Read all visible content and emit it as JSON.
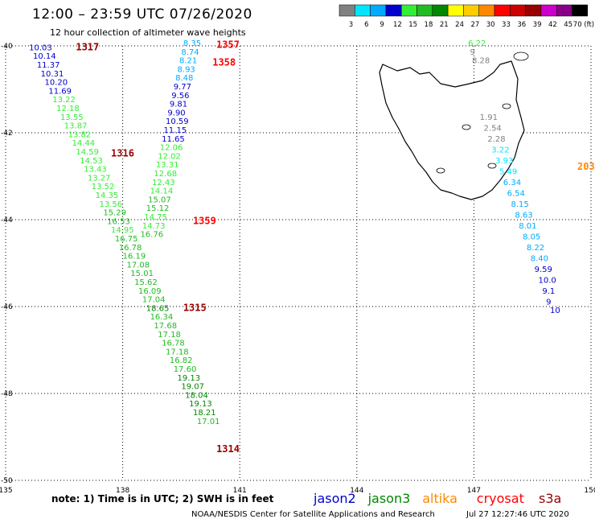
{
  "title": "12:00 – 23:59 UTC 07/26/2020",
  "subtitle": "12 hour collection of altimeter wave heights",
  "note": "note: 1) Time is in UTC; 2) SWH is in feet",
  "credit": "NOAA/NESDIS Center for Satellite Applications and Research",
  "timestamp": "Jul 27 12:27:46 UTC 2020",
  "colorbar": {
    "labels": [
      "3",
      "6",
      "9",
      "12",
      "15",
      "18",
      "21",
      "24",
      "27",
      "30",
      "33",
      "36",
      "39",
      "42",
      "45",
      "70 (ft)"
    ],
    "colors": [
      "#808080",
      "#00e5ff",
      "#00aaff",
      "#0000cc",
      "#33ee33",
      "#22bb22",
      "#008800",
      "#ffff00",
      "#ffcc00",
      "#ff8800",
      "#ff0000",
      "#cc0000",
      "#990000",
      "#cc00cc",
      "#880088",
      "#000000"
    ]
  },
  "missions": [
    {
      "name": "jason2",
      "color": "#0000cc"
    },
    {
      "name": "jason3",
      "color": "#008800"
    },
    {
      "name": "altika",
      "color": "#ff8800"
    },
    {
      "name": "cryosat",
      "color": "#ff0000"
    },
    {
      "name": "s3a",
      "color": "#990000"
    }
  ],
  "axes": {
    "lon_ticks": [
      "135",
      "138",
      "141",
      "144",
      "147",
      "150"
    ],
    "lat_ticks": [
      "-40",
      "-42",
      "-44",
      "-46",
      "-48",
      "-50"
    ]
  },
  "chart_data": {
    "type": "scatter",
    "xlim": [
      135,
      150
    ],
    "ylim": [
      -50,
      -40
    ],
    "grid": true,
    "pass_labels": [
      {
        "text": "1317",
        "lon": 136.8,
        "lat": -40.1,
        "color": "#990000"
      },
      {
        "text": "1357",
        "lon": 140.4,
        "lat": -40.05,
        "color": "#ff0000"
      },
      {
        "text": "1358",
        "lon": 140.3,
        "lat": -40.45,
        "color": "#ff0000"
      },
      {
        "text": "1316",
        "lon": 137.7,
        "lat": -42.55,
        "color": "#990000"
      },
      {
        "text": "1359",
        "lon": 139.8,
        "lat": -44.1,
        "color": "#ff0000"
      },
      {
        "text": "1315",
        "lon": 139.55,
        "lat": -46.1,
        "color": "#990000"
      },
      {
        "text": "1314",
        "lon": 140.4,
        "lat": -49.35,
        "color": "#990000"
      },
      {
        "text": "203",
        "lon": 149.65,
        "lat": -42.85,
        "color": "#ff8800"
      }
    ],
    "series": [
      {
        "name": "track-1317-1315-1314",
        "points": [
          {
            "lon": 135.6,
            "lat": -40.1,
            "swh": "10.03",
            "color": "#0000cc"
          },
          {
            "lon": 135.7,
            "lat": -40.3,
            "swh": "10.14",
            "color": "#0000cc"
          },
          {
            "lon": 135.8,
            "lat": -40.5,
            "swh": "11.37",
            "color": "#0000cc"
          },
          {
            "lon": 135.9,
            "lat": -40.7,
            "swh": "10.31",
            "color": "#0000cc"
          },
          {
            "lon": 136.0,
            "lat": -40.9,
            "swh": "10.20",
            "color": "#0000cc"
          },
          {
            "lon": 136.1,
            "lat": -41.1,
            "swh": "11.69",
            "color": "#0000cc"
          },
          {
            "lon": 136.2,
            "lat": -41.3,
            "swh": "13.22",
            "color": "#33ee33"
          },
          {
            "lon": 136.3,
            "lat": -41.5,
            "swh": "12.18",
            "color": "#33ee33"
          },
          {
            "lon": 136.4,
            "lat": -41.7,
            "swh": "13.55",
            "color": "#33ee33"
          },
          {
            "lon": 136.5,
            "lat": -41.9,
            "swh": "13.87",
            "color": "#33ee33"
          },
          {
            "lon": 136.6,
            "lat": -42.1,
            "swh": "13.82",
            "color": "#33ee33"
          },
          {
            "lon": 136.7,
            "lat": -42.3,
            "swh": "14.44",
            "color": "#33ee33"
          },
          {
            "lon": 136.8,
            "lat": -42.5,
            "swh": "14.59",
            "color": "#33ee33"
          },
          {
            "lon": 136.9,
            "lat": -42.7,
            "swh": "14.53",
            "color": "#33ee33"
          },
          {
            "lon": 137.0,
            "lat": -42.9,
            "swh": "13.43",
            "color": "#33ee33"
          },
          {
            "lon": 137.1,
            "lat": -43.1,
            "swh": "13.27",
            "color": "#33ee33"
          },
          {
            "lon": 137.2,
            "lat": -43.3,
            "swh": "13.52",
            "color": "#33ee33"
          },
          {
            "lon": 137.3,
            "lat": -43.5,
            "swh": "14.35",
            "color": "#33ee33"
          },
          {
            "lon": 137.4,
            "lat": -43.7,
            "swh": "13.56",
            "color": "#33ee33"
          },
          {
            "lon": 137.5,
            "lat": -43.9,
            "swh": "15.29",
            "color": "#22bb22"
          },
          {
            "lon": 137.6,
            "lat": -44.1,
            "swh": "16.53",
            "color": "#22bb22"
          },
          {
            "lon": 137.7,
            "lat": -44.3,
            "swh": "14.95",
            "color": "#33ee33"
          },
          {
            "lon": 137.8,
            "lat": -44.5,
            "swh": "16.75",
            "color": "#22bb22"
          },
          {
            "lon": 137.9,
            "lat": -44.7,
            "swh": "16.78",
            "color": "#22bb22"
          },
          {
            "lon": 138.0,
            "lat": -44.9,
            "swh": "16.19",
            "color": "#22bb22"
          },
          {
            "lon": 138.1,
            "lat": -45.1,
            "swh": "17.08",
            "color": "#22bb22"
          },
          {
            "lon": 138.2,
            "lat": -45.3,
            "swh": "15.01",
            "color": "#22bb22"
          },
          {
            "lon": 138.3,
            "lat": -45.5,
            "swh": "15.62",
            "color": "#22bb22"
          },
          {
            "lon": 138.4,
            "lat": -45.7,
            "swh": "16.09",
            "color": "#22bb22"
          },
          {
            "lon": 138.5,
            "lat": -45.9,
            "swh": "17.04",
            "color": "#22bb22"
          },
          {
            "lon": 138.6,
            "lat": -46.1,
            "swh": "18.65",
            "color": "#008800"
          },
          {
            "lon": 138.7,
            "lat": -46.3,
            "swh": "16.34",
            "color": "#22bb22"
          },
          {
            "lon": 138.8,
            "lat": -46.5,
            "swh": "17.68",
            "color": "#22bb22"
          },
          {
            "lon": 138.9,
            "lat": -46.7,
            "swh": "17.18",
            "color": "#22bb22"
          },
          {
            "lon": 139.0,
            "lat": -46.9,
            "swh": "16.78",
            "color": "#22bb22"
          },
          {
            "lon": 139.1,
            "lat": -47.1,
            "swh": "17.18",
            "color": "#22bb22"
          },
          {
            "lon": 139.2,
            "lat": -47.3,
            "swh": "16.82",
            "color": "#22bb22"
          },
          {
            "lon": 139.3,
            "lat": -47.5,
            "swh": "17.60",
            "color": "#22bb22"
          },
          {
            "lon": 139.4,
            "lat": -47.7,
            "swh": "19.13",
            "color": "#008800"
          },
          {
            "lon": 139.5,
            "lat": -47.9,
            "swh": "19.07",
            "color": "#008800"
          },
          {
            "lon": 139.6,
            "lat": -48.1,
            "swh": "18.04",
            "color": "#008800"
          },
          {
            "lon": 139.7,
            "lat": -48.3,
            "swh": "19.13",
            "color": "#008800"
          },
          {
            "lon": 139.8,
            "lat": -48.5,
            "swh": "18.21",
            "color": "#008800"
          },
          {
            "lon": 139.9,
            "lat": -48.7,
            "swh": "17.01",
            "color": "#22bb22"
          }
        ]
      },
      {
        "name": "track-1357-1358-1359",
        "points": [
          {
            "lon": 139.55,
            "lat": -40.0,
            "swh": "8.35",
            "color": "#00aaff"
          },
          {
            "lon": 139.5,
            "lat": -40.2,
            "swh": "8.74",
            "color": "#00aaff"
          },
          {
            "lon": 139.45,
            "lat": -40.4,
            "swh": "8.21",
            "color": "#00aaff"
          },
          {
            "lon": 139.4,
            "lat": -40.6,
            "swh": "8.93",
            "color": "#00aaff"
          },
          {
            "lon": 139.35,
            "lat": -40.8,
            "swh": "8.48",
            "color": "#00aaff"
          },
          {
            "lon": 139.3,
            "lat": -41.0,
            "swh": "9.77",
            "color": "#0000cc"
          },
          {
            "lon": 139.25,
            "lat": -41.2,
            "swh": "9.56",
            "color": "#0000cc"
          },
          {
            "lon": 139.2,
            "lat": -41.4,
            "swh": "9.81",
            "color": "#0000cc"
          },
          {
            "lon": 139.15,
            "lat": -41.6,
            "swh": "9.90",
            "color": "#0000cc"
          },
          {
            "lon": 139.1,
            "lat": -41.8,
            "swh": "10.59",
            "color": "#0000cc"
          },
          {
            "lon": 139.05,
            "lat": -42.0,
            "swh": "11.15",
            "color": "#0000cc"
          },
          {
            "lon": 139.0,
            "lat": -42.2,
            "swh": "11.65",
            "color": "#0000cc"
          },
          {
            "lon": 138.95,
            "lat": -42.4,
            "swh": "12.06",
            "color": "#33ee33"
          },
          {
            "lon": 138.9,
            "lat": -42.6,
            "swh": "12.02",
            "color": "#33ee33"
          },
          {
            "lon": 138.85,
            "lat": -42.8,
            "swh": "13.31",
            "color": "#33ee33"
          },
          {
            "lon": 138.8,
            "lat": -43.0,
            "swh": "12.68",
            "color": "#33ee33"
          },
          {
            "lon": 138.75,
            "lat": -43.2,
            "swh": "12.43",
            "color": "#33ee33"
          },
          {
            "lon": 138.7,
            "lat": -43.4,
            "swh": "14.14",
            "color": "#33ee33"
          },
          {
            "lon": 138.65,
            "lat": -43.6,
            "swh": "15.07",
            "color": "#22bb22"
          },
          {
            "lon": 138.6,
            "lat": -43.8,
            "swh": "15.12",
            "color": "#22bb22"
          },
          {
            "lon": 138.55,
            "lat": -44.0,
            "swh": "14.75",
            "color": "#33ee33"
          },
          {
            "lon": 138.5,
            "lat": -44.2,
            "swh": "14.73",
            "color": "#33ee33"
          },
          {
            "lon": 138.45,
            "lat": -44.4,
            "swh": "16.76",
            "color": "#22bb22"
          }
        ]
      },
      {
        "name": "track-north-east",
        "points": [
          {
            "lon": 146.85,
            "lat": -40.0,
            "swh": "6.22",
            "color": "#33ee33"
          },
          {
            "lon": 146.9,
            "lat": -40.2,
            "swh": "9",
            "color": "#808080"
          },
          {
            "lon": 146.95,
            "lat": -40.4,
            "swh": "8.28",
            "color": "#808080"
          }
        ]
      },
      {
        "name": "track-east-203",
        "points": [
          {
            "lon": 147.15,
            "lat": -41.7,
            "swh": "1.91",
            "color": "#808080"
          },
          {
            "lon": 147.25,
            "lat": -41.95,
            "swh": "2.54",
            "color": "#808080"
          },
          {
            "lon": 147.35,
            "lat": -42.2,
            "swh": "2.28",
            "color": "#808080"
          },
          {
            "lon": 147.45,
            "lat": -42.45,
            "swh": "3.22",
            "color": "#00e5ff"
          },
          {
            "lon": 147.55,
            "lat": -42.7,
            "swh": "3.93",
            "color": "#00e5ff"
          },
          {
            "lon": 147.65,
            "lat": -42.95,
            "swh": "5.49",
            "color": "#00e5ff"
          },
          {
            "lon": 147.75,
            "lat": -43.2,
            "swh": "6.34",
            "color": "#00aaff"
          },
          {
            "lon": 147.85,
            "lat": -43.45,
            "swh": "6.54",
            "color": "#00aaff"
          },
          {
            "lon": 147.95,
            "lat": -43.7,
            "swh": "8.15",
            "color": "#00aaff"
          },
          {
            "lon": 148.05,
            "lat": -43.95,
            "swh": "8.63",
            "color": "#00aaff"
          },
          {
            "lon": 148.15,
            "lat": -44.2,
            "swh": "8.01",
            "color": "#00aaff"
          },
          {
            "lon": 148.25,
            "lat": -44.45,
            "swh": "8.05",
            "color": "#00aaff"
          },
          {
            "lon": 148.35,
            "lat": -44.7,
            "swh": "8.22",
            "color": "#00aaff"
          },
          {
            "lon": 148.45,
            "lat": -44.95,
            "swh": "8.40",
            "color": "#00aaff"
          },
          {
            "lon": 148.55,
            "lat": -45.2,
            "swh": "9.59",
            "color": "#0000cc"
          },
          {
            "lon": 148.65,
            "lat": -45.45,
            "swh": "10.0",
            "color": "#0000cc"
          },
          {
            "lon": 148.75,
            "lat": -45.7,
            "swh": "9.1",
            "color": "#0000cc"
          },
          {
            "lon": 148.85,
            "lat": -45.95,
            "swh": "9",
            "color": "#0000cc"
          },
          {
            "lon": 148.95,
            "lat": -46.15,
            "swh": "10",
            "color": "#0000cc"
          }
        ]
      }
    ]
  }
}
